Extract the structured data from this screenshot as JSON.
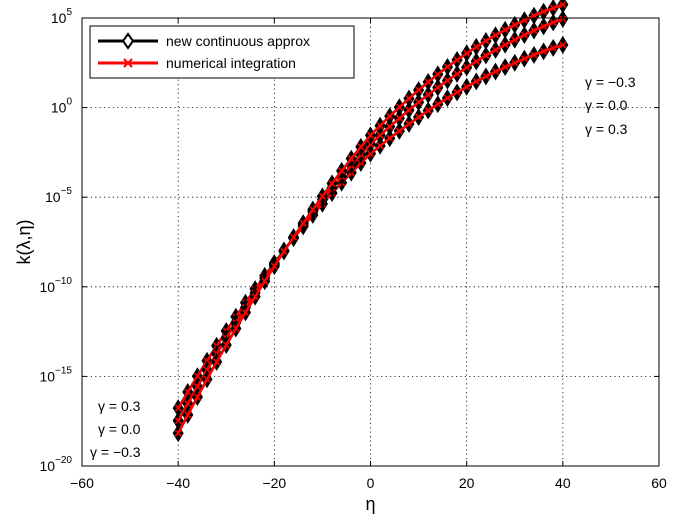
{
  "chart_data": {
    "type": "line",
    "title": "",
    "xlabel": "η",
    "ylabel": "k(λ,η)",
    "x_scale": "linear",
    "y_scale": "log",
    "xlim": [
      -60,
      60
    ],
    "ylim_exponent": [
      -20,
      5
    ],
    "xticks": [
      -60,
      -40,
      -20,
      0,
      20,
      40,
      60
    ],
    "xtick_labels": [
      "−60",
      "−40",
      "−20",
      "0",
      "20",
      "40",
      "60"
    ],
    "yticks_exponent": [
      -20,
      -15,
      -10,
      -5,
      0,
      5
    ],
    "grid": true,
    "legend_position": "top-left",
    "legend": [
      {
        "label": "new continuous approx",
        "color": "#000000",
        "marker": "diamond"
      },
      {
        "label": "numerical integration",
        "color": "#ff0000",
        "marker": "x"
      }
    ],
    "x": [
      -40,
      -38,
      -36,
      -34,
      -32,
      -30,
      -28,
      -26,
      -24,
      -22,
      -20,
      -18,
      -16,
      -14,
      -12,
      -10,
      -8,
      -6,
      -4,
      -2,
      0,
      2,
      4,
      6,
      8,
      10,
      12,
      14,
      16,
      18,
      20,
      22,
      24,
      26,
      28,
      30,
      32,
      34,
      36,
      38,
      40
    ],
    "series": [
      {
        "gamma": "γ = 0.3",
        "log10_values": [
          -16.77,
          -15.87,
          -14.99,
          -14.13,
          -13.29,
          -12.47,
          -11.67,
          -10.89,
          -10.13,
          -9.39,
          -8.67,
          -7.97,
          -7.29,
          -6.63,
          -5.99,
          -5.37,
          -4.77,
          -4.19,
          -3.63,
          -3.09,
          -2.57,
          -2.13,
          -1.71,
          -1.3,
          -0.91,
          -0.53,
          -0.16,
          0.19,
          0.53,
          0.85,
          1.16,
          1.46,
          1.74,
          2.01,
          2.26,
          2.5,
          2.73,
          2.94,
          3.14,
          3.33,
          3.5
        ]
      },
      {
        "gamma": "γ = 0.0",
        "log10_values": [
          -17.47,
          -16.51,
          -15.57,
          -14.64,
          -13.74,
          -12.86,
          -12.0,
          -11.16,
          -10.34,
          -9.53,
          -8.75,
          -7.99,
          -7.25,
          -6.53,
          -5.82,
          -5.14,
          -4.48,
          -3.84,
          -3.22,
          -2.62,
          -2.04,
          -1.54,
          -1.06,
          -0.59,
          -0.14,
          0.3,
          0.72,
          1.12,
          1.51,
          1.88,
          2.24,
          2.58,
          2.91,
          3.22,
          3.51,
          3.79,
          4.05,
          4.3,
          4.53,
          4.75,
          4.95
        ]
      },
      {
        "gamma": "γ = −0.3",
        "log10_values": [
          -18.17,
          -17.15,
          -16.15,
          -15.16,
          -14.19,
          -13.25,
          -12.33,
          -11.43,
          -10.55,
          -9.69,
          -8.85,
          -8.03,
          -7.23,
          -6.45,
          -5.69,
          -4.95,
          -4.23,
          -3.53,
          -2.85,
          -2.19,
          -1.55,
          -1.01,
          -0.48,
          0.02,
          0.51,
          0.98,
          1.43,
          1.86,
          2.27,
          2.66,
          3.03,
          3.39,
          3.72,
          4.04,
          4.34,
          4.62,
          4.88,
          5.13,
          5.35,
          5.56,
          5.75
        ]
      }
    ],
    "annotations_left": [
      "γ = 0.3",
      "γ = 0.0",
      "γ = −0.3"
    ],
    "annotations_right": [
      "γ = −0.3",
      "γ = 0.0",
      "γ = 0.3"
    ]
  }
}
